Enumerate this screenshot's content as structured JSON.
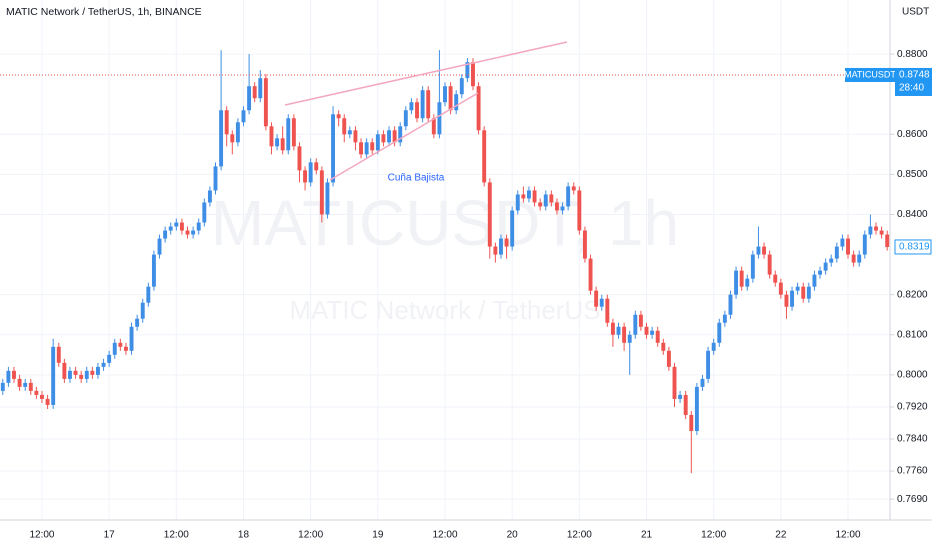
{
  "chart_data": {
    "type": "candlestick",
    "title": "MATIC Network / TetherUS, 1h, BINANCE",
    "currency": "USDT",
    "annotation": "Cuña Bajista",
    "watermark": [
      "MATICUSDT, 1h",
      "MATIC Network / TetherUS"
    ],
    "categories": [
      null,
      null,
      null,
      null,
      null,
      null,
      null,
      "12:00",
      null,
      null,
      null,
      null,
      null,
      null,
      null,
      null,
      null,
      null,
      null,
      "17",
      null,
      null,
      null,
      null,
      null,
      null,
      null,
      null,
      null,
      null,
      null,
      "12:00",
      null,
      null,
      null,
      null,
      null,
      null,
      null,
      null,
      null,
      null,
      null,
      "18",
      null,
      null,
      null,
      null,
      null,
      null,
      null,
      null,
      null,
      null,
      null,
      "12:00",
      null,
      null,
      null,
      null,
      null,
      null,
      null,
      null,
      null,
      null,
      null,
      "19",
      null,
      null,
      null,
      null,
      null,
      null,
      null,
      null,
      null,
      null,
      null,
      "12:00",
      null,
      null,
      null,
      null,
      null,
      null,
      null,
      null,
      null,
      null,
      null,
      "20",
      null,
      null,
      null,
      null,
      null,
      null,
      null,
      null,
      null,
      null,
      null,
      "12:00",
      null,
      null,
      null,
      null,
      null,
      null,
      null,
      null,
      null,
      null,
      null,
      "21",
      null,
      null,
      null,
      null,
      null,
      null,
      null,
      null,
      null,
      null,
      null,
      "12:00",
      null,
      null,
      null,
      null,
      null,
      null,
      null,
      null,
      null,
      null,
      null,
      "22",
      null,
      null,
      null,
      null,
      null,
      null,
      null,
      null,
      null,
      null,
      null,
      "12:00",
      null,
      null,
      null,
      null,
      null,
      null,
      null
    ],
    "open": [
      0.796,
      0.798,
      0.801,
      0.799,
      0.797,
      0.798,
      0.796,
      0.795,
      0.794,
      0.7925,
      0.807,
      0.803,
      0.799,
      0.801,
      0.8,
      0.799,
      0.801,
      0.8,
      0.802,
      0.803,
      0.805,
      0.808,
      0.807,
      0.806,
      0.812,
      0.814,
      0.818,
      0.822,
      0.83,
      0.834,
      0.836,
      0.837,
      0.838,
      0.836,
      0.835,
      0.836,
      0.838,
      0.843,
      0.846,
      0.852,
      0.866,
      0.86,
      0.858,
      0.863,
      0.866,
      0.872,
      0.869,
      0.874,
      0.862,
      0.857,
      0.859,
      0.856,
      0.864,
      0.857,
      0.851,
      0.848,
      0.853,
      0.851,
      0.84,
      0.848,
      0.865,
      0.864,
      0.86,
      0.861,
      0.858,
      0.855,
      0.858,
      0.856,
      0.86,
      0.858,
      0.861,
      0.858,
      0.862,
      0.866,
      0.868,
      0.864,
      0.871,
      0.864,
      0.86,
      0.868,
      0.872,
      0.866,
      0.87,
      0.874,
      0.878,
      0.872,
      0.861,
      0.848,
      0.832,
      0.83,
      0.834,
      0.832,
      0.841,
      0.845,
      0.844,
      0.846,
      0.843,
      0.842,
      0.845,
      0.843,
      0.841,
      0.842,
      0.847,
      0.846,
      0.836,
      0.829,
      0.821,
      0.817,
      0.819,
      0.813,
      0.81,
      0.812,
      0.808,
      0.81,
      0.815,
      0.812,
      0.81,
      0.811,
      0.808,
      0.806,
      0.802,
      0.794,
      0.795,
      0.79,
      0.786,
      0.797,
      0.799,
      0.806,
      0.808,
      0.813,
      0.815,
      0.82,
      0.826,
      0.822,
      0.824,
      0.83,
      0.832,
      0.83,
      0.825,
      0.823,
      0.82,
      0.817,
      0.821,
      0.822,
      0.819,
      0.822,
      0.825,
      0.826,
      0.828,
      0.829,
      0.832,
      0.834,
      0.83,
      0.828,
      0.83,
      0.835,
      0.837,
      0.836,
      0.835
    ],
    "high": [
      0.799,
      0.802,
      0.802,
      0.8,
      0.799,
      0.799,
      0.797,
      0.796,
      0.795,
      0.809,
      0.808,
      0.804,
      0.802,
      0.802,
      0.801,
      0.802,
      0.802,
      0.803,
      0.804,
      0.806,
      0.809,
      0.809,
      0.808,
      0.813,
      0.815,
      0.819,
      0.823,
      0.831,
      0.835,
      0.837,
      0.838,
      0.839,
      0.839,
      0.837,
      0.837,
      0.839,
      0.844,
      0.847,
      0.853,
      0.881,
      0.867,
      0.861,
      0.864,
      0.867,
      0.88,
      0.873,
      0.876,
      0.875,
      0.863,
      0.86,
      0.862,
      0.865,
      0.865,
      0.858,
      0.852,
      0.854,
      0.854,
      0.852,
      0.849,
      0.867,
      0.866,
      0.865,
      0.862,
      0.862,
      0.859,
      0.859,
      0.859,
      0.861,
      0.861,
      0.862,
      0.862,
      0.863,
      0.867,
      0.869,
      0.869,
      0.872,
      0.872,
      0.865,
      0.881,
      0.873,
      0.873,
      0.871,
      0.875,
      0.879,
      0.879,
      0.873,
      0.862,
      0.849,
      0.833,
      0.835,
      0.835,
      0.842,
      0.846,
      0.847,
      0.847,
      0.847,
      0.844,
      0.846,
      0.846,
      0.844,
      0.843,
      0.848,
      0.848,
      0.847,
      0.837,
      0.83,
      0.822,
      0.82,
      0.82,
      0.814,
      0.813,
      0.813,
      0.811,
      0.816,
      0.816,
      0.813,
      0.812,
      0.812,
      0.809,
      0.807,
      0.803,
      0.796,
      0.796,
      0.791,
      0.798,
      0.8,
      0.807,
      0.809,
      0.814,
      0.816,
      0.821,
      0.827,
      0.827,
      0.825,
      0.831,
      0.837,
      0.833,
      0.831,
      0.826,
      0.824,
      0.821,
      0.822,
      0.823,
      0.823,
      0.823,
      0.826,
      0.827,
      0.829,
      0.83,
      0.833,
      0.835,
      0.835,
      0.831,
      0.831,
      0.836,
      0.84,
      0.838,
      0.837,
      0.836
    ],
    "low": [
      0.795,
      0.797,
      0.798,
      0.796,
      0.796,
      0.795,
      0.794,
      0.793,
      0.7915,
      0.7915,
      0.802,
      0.798,
      0.798,
      0.799,
      0.798,
      0.798,
      0.799,
      0.799,
      0.801,
      0.802,
      0.804,
      0.806,
      0.805,
      0.805,
      0.811,
      0.813,
      0.817,
      0.821,
      0.829,
      0.833,
      0.835,
      0.836,
      0.835,
      0.834,
      0.834,
      0.835,
      0.837,
      0.842,
      0.845,
      0.851,
      0.857,
      0.855,
      0.857,
      0.862,
      0.865,
      0.868,
      0.868,
      0.861,
      0.855,
      0.856,
      0.855,
      0.855,
      0.856,
      0.848,
      0.846,
      0.847,
      0.85,
      0.838,
      0.839,
      0.847,
      0.862,
      0.858,
      0.859,
      0.856,
      0.854,
      0.854,
      0.855,
      0.855,
      0.857,
      0.857,
      0.857,
      0.857,
      0.861,
      0.865,
      0.863,
      0.863,
      0.863,
      0.859,
      0.859,
      0.867,
      0.865,
      0.865,
      0.869,
      0.873,
      0.871,
      0.86,
      0.847,
      0.829,
      0.828,
      0.829,
      0.829,
      0.831,
      0.84,
      0.843,
      0.843,
      0.842,
      0.841,
      0.841,
      0.842,
      0.84,
      0.84,
      0.841,
      0.845,
      0.835,
      0.828,
      0.82,
      0.816,
      0.816,
      0.812,
      0.807,
      0.809,
      0.806,
      0.8,
      0.809,
      0.811,
      0.809,
      0.809,
      0.807,
      0.805,
      0.801,
      0.792,
      0.793,
      0.789,
      0.7755,
      0.785,
      0.796,
      0.798,
      0.805,
      0.807,
      0.812,
      0.814,
      0.819,
      0.821,
      0.821,
      0.823,
      0.829,
      0.829,
      0.824,
      0.822,
      0.819,
      0.814,
      0.816,
      0.82,
      0.818,
      0.818,
      0.821,
      0.824,
      0.825,
      0.827,
      0.828,
      0.831,
      0.829,
      0.827,
      0.827,
      0.829,
      0.834,
      0.835,
      0.834,
      0.831
    ],
    "close": [
      0.798,
      0.801,
      0.799,
      0.797,
      0.798,
      0.796,
      0.795,
      0.794,
      0.7925,
      0.807,
      0.803,
      0.799,
      0.801,
      0.8,
      0.799,
      0.801,
      0.8,
      0.802,
      0.803,
      0.805,
      0.808,
      0.807,
      0.806,
      0.812,
      0.814,
      0.818,
      0.822,
      0.83,
      0.834,
      0.836,
      0.837,
      0.838,
      0.836,
      0.835,
      0.836,
      0.838,
      0.843,
      0.846,
      0.852,
      0.866,
      0.86,
      0.858,
      0.863,
      0.866,
      0.872,
      0.869,
      0.874,
      0.862,
      0.857,
      0.859,
      0.856,
      0.864,
      0.857,
      0.851,
      0.848,
      0.853,
      0.851,
      0.84,
      0.848,
      0.865,
      0.864,
      0.86,
      0.861,
      0.858,
      0.855,
      0.858,
      0.856,
      0.86,
      0.858,
      0.861,
      0.858,
      0.862,
      0.866,
      0.868,
      0.864,
      0.871,
      0.864,
      0.86,
      0.868,
      0.872,
      0.866,
      0.87,
      0.874,
      0.878,
      0.872,
      0.861,
      0.848,
      0.832,
      0.83,
      0.834,
      0.832,
      0.841,
      0.845,
      0.844,
      0.846,
      0.843,
      0.842,
      0.845,
      0.843,
      0.841,
      0.842,
      0.847,
      0.846,
      0.836,
      0.829,
      0.821,
      0.817,
      0.819,
      0.813,
      0.81,
      0.812,
      0.808,
      0.81,
      0.815,
      0.812,
      0.81,
      0.811,
      0.808,
      0.806,
      0.802,
      0.794,
      0.795,
      0.79,
      0.786,
      0.797,
      0.799,
      0.806,
      0.808,
      0.813,
      0.815,
      0.82,
      0.826,
      0.822,
      0.824,
      0.83,
      0.832,
      0.83,
      0.825,
      0.823,
      0.82,
      0.817,
      0.821,
      0.822,
      0.819,
      0.822,
      0.825,
      0.826,
      0.828,
      0.829,
      0.832,
      0.834,
      0.83,
      0.828,
      0.83,
      0.835,
      0.837,
      0.836,
      0.835,
      0.8319
    ],
    "up_color": "#3f8ee6",
    "down_color": "#ef5350",
    "ylim": [
      0.7638,
      0.8935
    ],
    "yticks": [
      {
        "value": 0.88,
        "label": "0.8800"
      },
      {
        "value": 0.86,
        "label": "0.8600"
      },
      {
        "value": 0.85,
        "label": "0.8500"
      },
      {
        "value": 0.84,
        "label": "0.8400"
      },
      {
        "value": 0.82,
        "label": "0.8200"
      },
      {
        "value": 0.81,
        "label": "0.8100"
      },
      {
        "value": 0.8,
        "label": "0.8000"
      },
      {
        "value": 0.792,
        "label": "0.7920"
      },
      {
        "value": 0.784,
        "label": "0.7840"
      },
      {
        "value": 0.776,
        "label": "0.7760"
      },
      {
        "value": 0.769,
        "label": "0.7690"
      }
    ],
    "grid": true,
    "symbol_price": {
      "symbol": "MATICUSDT",
      "value": 0.8748,
      "label": "0.8748",
      "countdown": "28:40"
    },
    "last_price": {
      "value": 0.8319,
      "label": "0.8319"
    }
  }
}
